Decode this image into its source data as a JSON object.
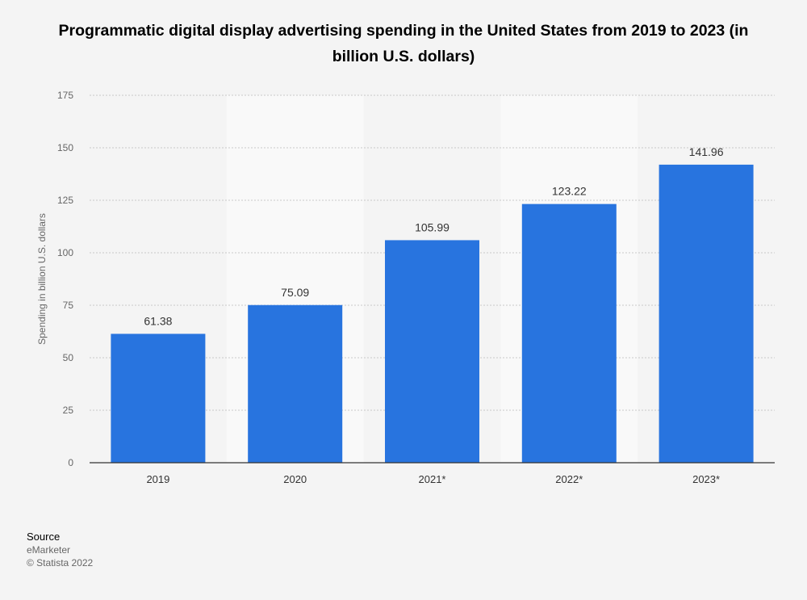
{
  "title": "Programmatic digital display advertising spending in the United States from 2019 to 2023 (in billion U.S. dollars)",
  "source": {
    "heading": "Source",
    "name": "eMarketer",
    "copyright": "© Statista 2022"
  },
  "colors": {
    "bar": "#2874df",
    "background": "#f4f4f4",
    "band": "#f9f9f9",
    "grid": "#c9c9c9",
    "axis": "#333333"
  },
  "chart_data": {
    "type": "bar",
    "title": "Programmatic digital display advertising spending in the United States from 2019 to 2023 (in billion U.S. dollars)",
    "categories": [
      "2019",
      "2020",
      "2021*",
      "2022*",
      "2023*"
    ],
    "values": [
      61.38,
      75.09,
      105.99,
      123.22,
      141.96
    ],
    "data_labels": [
      "61.38",
      "75.09",
      "105.99",
      "123.22",
      "141.96"
    ],
    "xlabel": "",
    "ylabel": "Spending in billion U.S. dollars",
    "ylim": [
      0,
      175
    ],
    "yticks": [
      0,
      25,
      50,
      75,
      100,
      125,
      150,
      175
    ],
    "grid": true,
    "legend": "none"
  }
}
